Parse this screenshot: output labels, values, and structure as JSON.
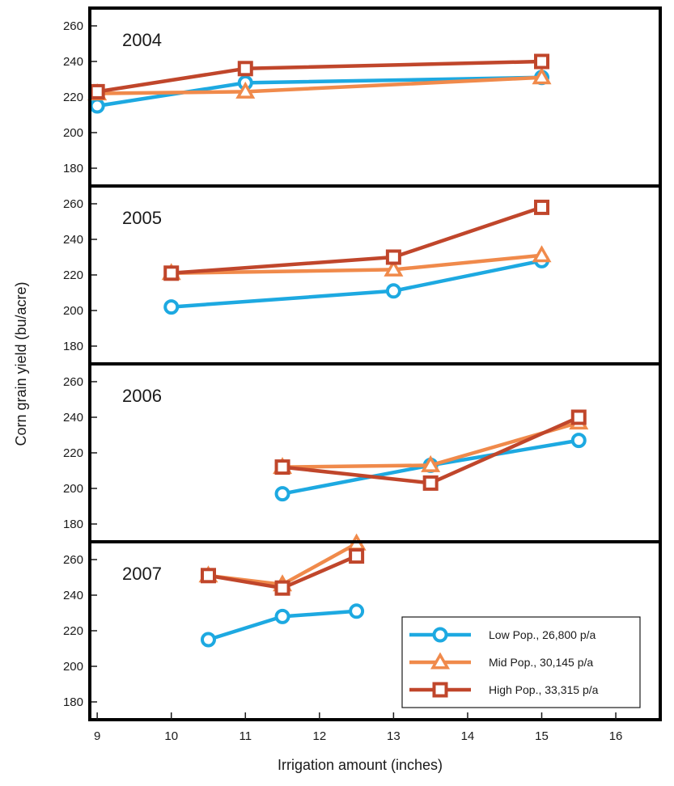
{
  "chart_data": {
    "type": "line",
    "xlabel": "Irrigation amount (inches)",
    "ylabel": "Corn grain yield (bu/acre)",
    "xlim": [
      8.9,
      16.6
    ],
    "ylim": [
      170,
      270
    ],
    "x_ticks": [
      9,
      10,
      11,
      12,
      13,
      14,
      15,
      16
    ],
    "y_ticks": [
      180,
      200,
      220,
      240,
      260
    ],
    "grid": false,
    "legend": {
      "placement": "bottom-right of last panel",
      "entries": [
        {
          "label": "Low Pop., 26,800 p/a",
          "color": "#1da9e1",
          "marker": "circle"
        },
        {
          "label": "Mid Pop., 30,145 p/a",
          "color": "#f08a4b",
          "marker": "triangle"
        },
        {
          "label": "High Pop., 33,315 p/a",
          "color": "#c0462b",
          "marker": "square"
        }
      ]
    },
    "panels": [
      {
        "year": "2004",
        "series": [
          {
            "name": "Low Pop., 26,800 p/a",
            "x": [
              9,
              11,
              15
            ],
            "y": [
              215,
              228,
              231
            ]
          },
          {
            "name": "Mid Pop., 30,145 p/a",
            "x": [
              9,
              11,
              15
            ],
            "y": [
              222,
              223,
              231
            ]
          },
          {
            "name": "High Pop., 33,315 p/a",
            "x": [
              9,
              11,
              15
            ],
            "y": [
              223,
              236,
              240
            ]
          }
        ]
      },
      {
        "year": "2005",
        "series": [
          {
            "name": "Low Pop., 26,800 p/a",
            "x": [
              10,
              13,
              15
            ],
            "y": [
              202,
              211,
              228
            ]
          },
          {
            "name": "Mid Pop., 30,145 p/a",
            "x": [
              10,
              13,
              15
            ],
            "y": [
              221,
              223,
              231
            ]
          },
          {
            "name": "High Pop., 33,315 p/a",
            "x": [
              10,
              13,
              15
            ],
            "y": [
              221,
              230,
              258
            ]
          }
        ]
      },
      {
        "year": "2006",
        "series": [
          {
            "name": "Low Pop., 26,800 p/a",
            "x": [
              11.5,
              13.5,
              15.5
            ],
            "y": [
              197,
              213,
              227
            ]
          },
          {
            "name": "Mid Pop., 30,145 p/a",
            "x": [
              11.5,
              13.5,
              15.5
            ],
            "y": [
              212,
              213,
              237
            ]
          },
          {
            "name": "High Pop., 33,315 p/a",
            "x": [
              11.5,
              13.5,
              15.5
            ],
            "y": [
              212,
              203,
              240
            ]
          }
        ]
      },
      {
        "year": "2007",
        "series": [
          {
            "name": "Low Pop., 26,800 p/a",
            "x": [
              10.5,
              11.5,
              12.5
            ],
            "y": [
              215,
              228,
              231
            ]
          },
          {
            "name": "Mid Pop., 30,145 p/a",
            "x": [
              10.5,
              11.5,
              12.5
            ],
            "y": [
              251,
              246,
              269
            ]
          },
          {
            "name": "High Pop., 33,315 p/a",
            "x": [
              10.5,
              11.5,
              12.5
            ],
            "y": [
              251,
              244,
              262
            ]
          }
        ]
      }
    ]
  }
}
